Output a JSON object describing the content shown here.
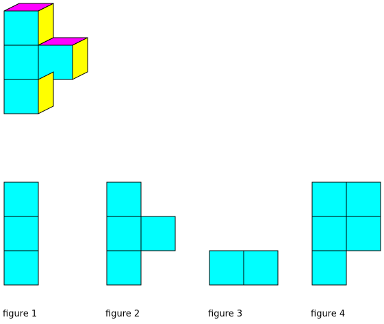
{
  "colors": {
    "front_face": "#00ffff",
    "top_face": "#ff00ff",
    "side_face": "#ffff00",
    "outline": "#000000",
    "background": "#ffffff"
  },
  "solid": {
    "description_visible": false,
    "cube_count": 4
  },
  "figures": [
    {
      "label": "figure 1",
      "cells": [
        [
          0,
          0
        ],
        [
          0,
          1
        ],
        [
          0,
          2
        ]
      ]
    },
    {
      "label": "figure 2",
      "cells": [
        [
          0,
          0
        ],
        [
          0,
          1
        ],
        [
          1,
          1
        ],
        [
          0,
          2
        ]
      ]
    },
    {
      "label": "figure 3",
      "cells": [
        [
          0,
          0
        ],
        [
          1,
          0
        ]
      ]
    },
    {
      "label": "figure 4",
      "cells": [
        [
          0,
          0
        ],
        [
          1,
          0
        ],
        [
          0,
          1
        ],
        [
          1,
          1
        ],
        [
          0,
          2
        ]
      ]
    }
  ]
}
